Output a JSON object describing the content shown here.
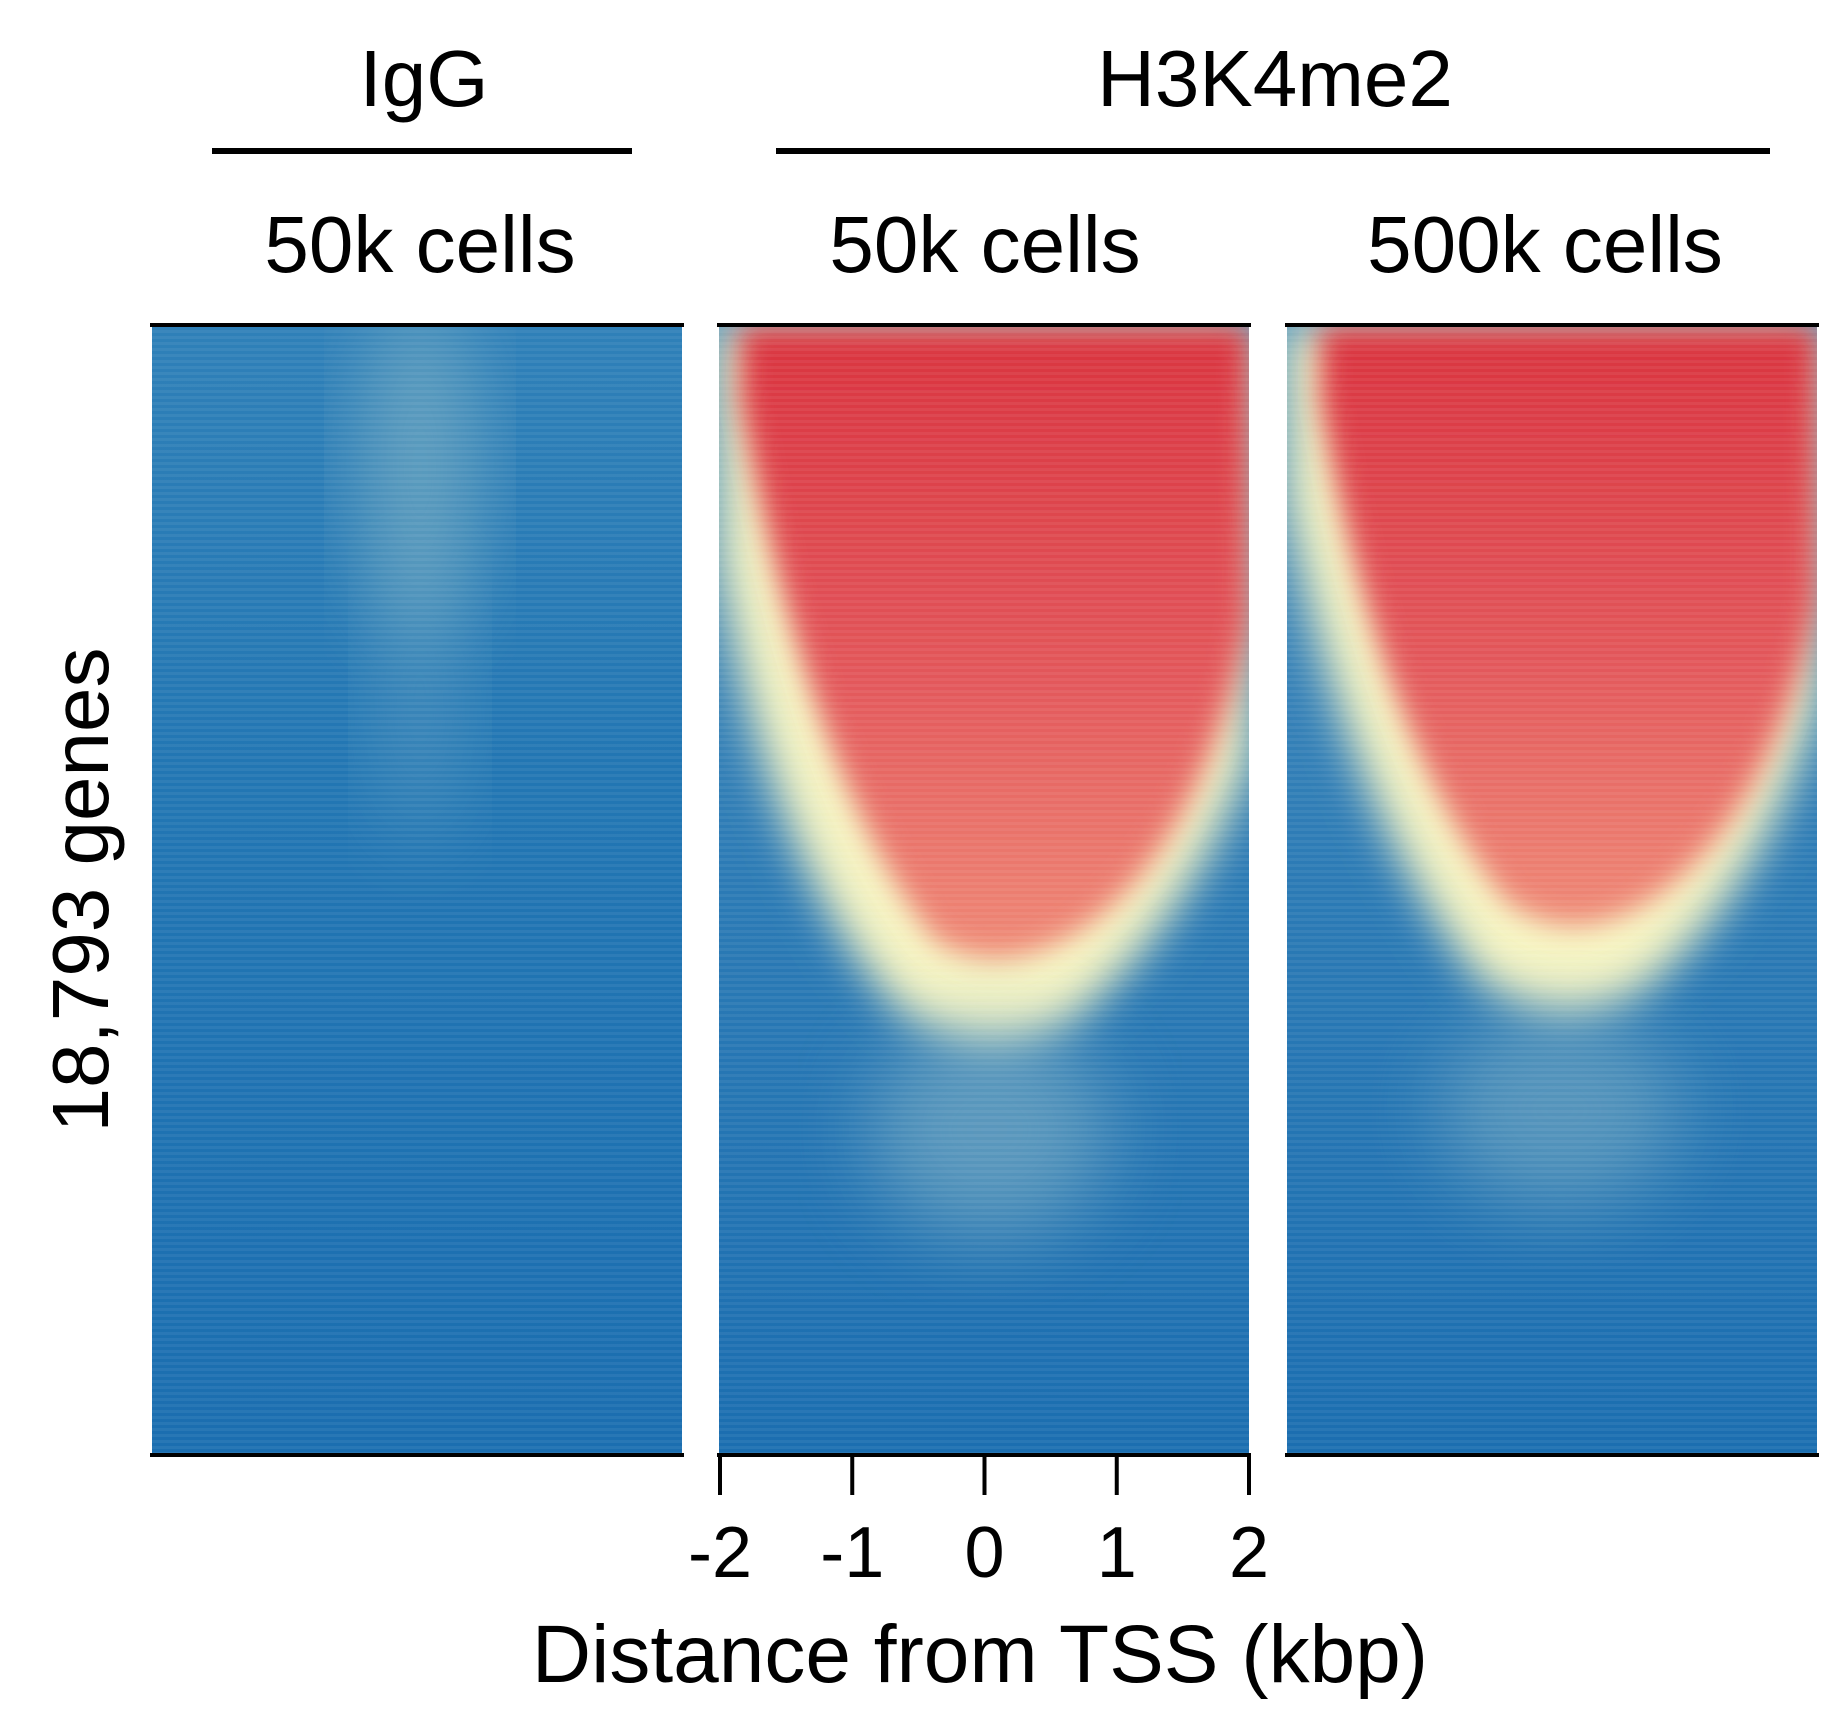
{
  "chart_data": {
    "type": "heatmap",
    "title": "",
    "group_labels": [
      "IgG",
      "H3K4me2"
    ],
    "panels": [
      {
        "group": "IgG",
        "label": "50k cells",
        "signal": "low"
      },
      {
        "group": "H3K4me2",
        "label": "50k cells",
        "signal": "high"
      },
      {
        "group": "H3K4me2",
        "label": "500k cells",
        "signal": "high"
      }
    ],
    "ylabel": "18,793 genes",
    "xlabel": "Distance from TSS (kbp)",
    "x_ticks": [
      -2,
      -1,
      0,
      1,
      2
    ],
    "x_tick_labels": [
      "-2",
      "-1",
      "0",
      "1",
      "2"
    ],
    "xlim": [
      -2,
      2
    ],
    "colormap": {
      "low": "#1b6eb0",
      "mid": "#f6f4c2",
      "high": "#d9333f"
    }
  }
}
